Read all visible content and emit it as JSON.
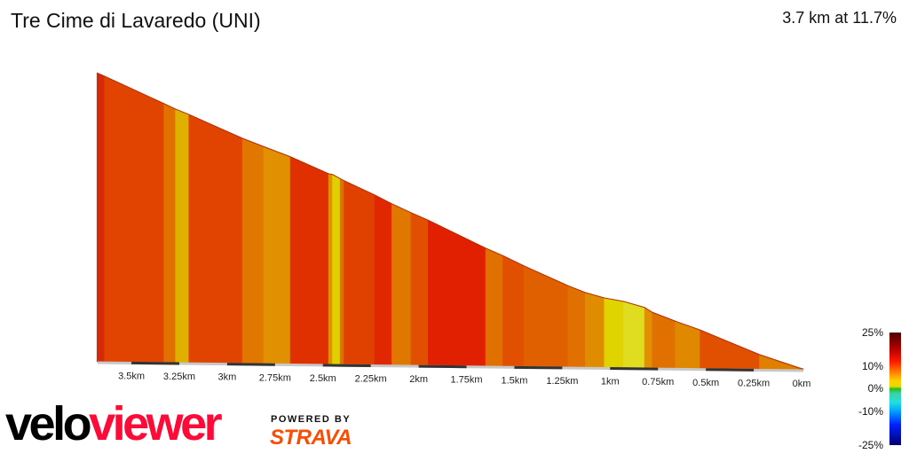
{
  "header": {
    "title": "Tre Cime di Lavaredo (UNI)",
    "summary": "3.7 km at 11.7%"
  },
  "chart_data": {
    "type": "area",
    "title": "Tre Cime di Lavaredo (UNI)",
    "xlabel": "",
    "ylabel": "",
    "x_unit": "km remaining",
    "x_reversed": true,
    "xlim": [
      3.7,
      0
    ],
    "x_ticks": [
      "3.5km",
      "3.25km",
      "3km",
      "2.75km",
      "2.5km",
      "2.25km",
      "2km",
      "1.75km",
      "1.5km",
      "1.25km",
      "1km",
      "0.75km",
      "0.5km",
      "0.25km",
      "0km"
    ],
    "x_tick_values": [
      3.5,
      3.25,
      3,
      2.75,
      2.5,
      2.25,
      2,
      1.75,
      1.5,
      1.25,
      1,
      0.75,
      0.5,
      0.25,
      0
    ],
    "profile_points": [
      {
        "km": 3.68,
        "elev": 434
      },
      {
        "km": 3.64,
        "elev": 429
      },
      {
        "km": 3.33,
        "elev": 389
      },
      {
        "km": 3.27,
        "elev": 381
      },
      {
        "km": 3.2,
        "elev": 373
      },
      {
        "km": 2.92,
        "elev": 338
      },
      {
        "km": 2.81,
        "elev": 326
      },
      {
        "km": 2.67,
        "elev": 311
      },
      {
        "km": 2.47,
        "elev": 286
      },
      {
        "km": 2.45,
        "elev": 285
      },
      {
        "km": 2.41,
        "elev": 279
      },
      {
        "km": 2.39,
        "elev": 276
      },
      {
        "km": 2.23,
        "elev": 255
      },
      {
        "km": 2.14,
        "elev": 242
      },
      {
        "km": 2.04,
        "elev": 229
      },
      {
        "km": 1.95,
        "elev": 218
      },
      {
        "km": 1.65,
        "elev": 177
      },
      {
        "km": 1.56,
        "elev": 166
      },
      {
        "km": 1.45,
        "elev": 151
      },
      {
        "km": 1.22,
        "elev": 122
      },
      {
        "km": 1.13,
        "elev": 112
      },
      {
        "km": 1.03,
        "elev": 104
      },
      {
        "km": 0.93,
        "elev": 99
      },
      {
        "km": 0.82,
        "elev": 90
      },
      {
        "km": 0.78,
        "elev": 83
      },
      {
        "km": 0.66,
        "elev": 70
      },
      {
        "km": 0.53,
        "elev": 57
      },
      {
        "km": 0.22,
        "elev": 21
      },
      {
        "km": 0,
        "elev": 0
      }
    ],
    "segment_colors": [
      "#d42a0a",
      "#e04400",
      "#e07000",
      "#e0b000",
      "#e04400",
      "#e07800",
      "#e09000",
      "#e03000",
      "#e09000",
      "#e0d000",
      "#e07000",
      "#e04000",
      "#e02800",
      "#e07800",
      "#e05000",
      "#e02000",
      "#e07000",
      "#e05000",
      "#e06000",
      "#e07000",
      "#e08c00",
      "#e0d400",
      "#e0dc20",
      "#e09000",
      "#e07000",
      "#e08800",
      "#e05000",
      "#e08000"
    ],
    "legend": {
      "type": "gradient colorbar",
      "labels": [
        "25%",
        "10%",
        "0%",
        "-10%",
        "-25%"
      ],
      "range": [
        -25,
        25
      ]
    }
  },
  "branding": {
    "logo_part1": "velo",
    "logo_part2": "viewer",
    "powered_by": "POWERED BY",
    "strava": "STRAVA",
    "logo_colors": {
      "velo": "#000000",
      "viewer": "#fc0a38",
      "strava": "#fc4c02"
    }
  }
}
